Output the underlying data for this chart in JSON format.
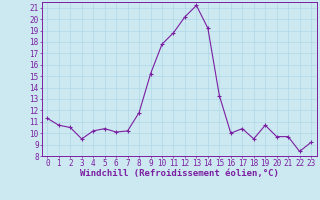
{
  "x": [
    0,
    1,
    2,
    3,
    4,
    5,
    6,
    7,
    8,
    9,
    10,
    11,
    12,
    13,
    14,
    15,
    16,
    17,
    18,
    19,
    20,
    21,
    22,
    23
  ],
  "y": [
    11.3,
    10.7,
    10.5,
    9.5,
    10.2,
    10.4,
    10.1,
    10.2,
    11.8,
    15.2,
    17.8,
    18.8,
    20.2,
    21.2,
    19.2,
    13.3,
    10.0,
    10.4,
    9.5,
    10.7,
    9.7,
    9.7,
    8.4,
    9.2
  ],
  "line_color": "#7b1fa2",
  "marker": "+",
  "marker_size": 3,
  "background_color": "#cce8f0",
  "grid_color": "#b0d8e8",
  "xlabel": "Windchill (Refroidissement éolien,°C)",
  "ylabel": "",
  "ylim": [
    8,
    21.5
  ],
  "xlim": [
    -0.5,
    23.5
  ],
  "yticks": [
    8,
    9,
    10,
    11,
    12,
    13,
    14,
    15,
    16,
    17,
    18,
    19,
    20,
    21
  ],
  "xticks": [
    0,
    1,
    2,
    3,
    4,
    5,
    6,
    7,
    8,
    9,
    10,
    11,
    12,
    13,
    14,
    15,
    16,
    17,
    18,
    19,
    20,
    21,
    22,
    23
  ],
  "tick_label_color": "#7b1fa2",
  "tick_label_fontsize": 5.5,
  "xlabel_fontsize": 6.5,
  "spine_color": "#7b1fa2",
  "linewidth": 0.8
}
